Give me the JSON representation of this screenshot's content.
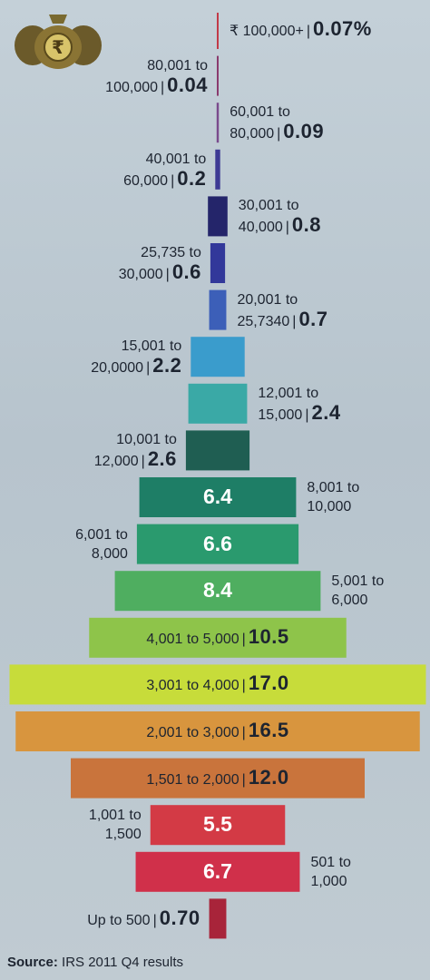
{
  "chart_data": {
    "type": "bar",
    "unit_suffix": "%",
    "categories": [
      "₹ 100,000+",
      "80,001 to 100,000",
      "60,001 to 80,000",
      "40,001 to 60,000",
      "30,001 to 40,000",
      "25,735 to 30,000",
      "20,001 to 25,7340",
      "15,001 to 20,0000",
      "12,001 to 15,000",
      "10,001 to 12,000",
      "8,001 to 10,000",
      "6,001 to 8,000",
      "5,001 to 6,000",
      "4,001 to 5,000",
      "3,001 to 4,000",
      "2,001 to 3,000",
      "1,501 to 2,000",
      "1,001 to 1,500",
      "501 to 1,000",
      "Up to 500"
    ],
    "values": [
      0.07,
      0.04,
      0.09,
      0.2,
      0.8,
      0.6,
      0.7,
      2.2,
      2.4,
      2.6,
      6.4,
      6.6,
      8.4,
      10.5,
      17.0,
      16.5,
      12.0,
      5.5,
      6.7,
      0.7
    ],
    "value_labels": [
      "0.07%",
      "0.04",
      "0.09",
      "0.2",
      "0.8",
      "0.6",
      "0.7",
      "2.2",
      "2.4",
      "2.6",
      "6.4",
      "6.6",
      "8.4",
      "10.5",
      "17.0",
      "16.5",
      "12.0",
      "5.5",
      "6.7",
      "0.70"
    ],
    "label_lines": [
      [
        "₹ 100,000+"
      ],
      [
        "80,001 to",
        "100,000"
      ],
      [
        "60,001 to",
        "80,000"
      ],
      [
        "40,001 to",
        "60,000"
      ],
      [
        "30,001 to",
        "40,000"
      ],
      [
        "25,735 to",
        "30,000"
      ],
      [
        "20,001 to",
        "25,7340"
      ],
      [
        "15,001 to",
        "20,0000"
      ],
      [
        "12,001 to",
        "15,000"
      ],
      [
        "10,001 to",
        "12,000"
      ],
      [
        "8,001 to",
        "10,000"
      ],
      [
        "6,001 to",
        "8,000"
      ],
      [
        "5,001 to",
        "6,000"
      ],
      [
        "4,001 to 5,000"
      ],
      [
        "3,001 to 4,000"
      ],
      [
        "2,001 to 3,000"
      ],
      [
        "1,501 to 2,000"
      ],
      [
        "1,001 to",
        "1,500"
      ],
      [
        "501 to",
        "1,000"
      ],
      [
        "Up to 500"
      ]
    ],
    "colors": [
      "#c23a48",
      "#8a3b6e",
      "#7a4a8c",
      "#3d3a94",
      "#24256a",
      "#32389a",
      "#3c5fb8",
      "#3a9ccc",
      "#3aa9a6",
      "#1f5e52",
      "#1e7e66",
      "#2a9a6e",
      "#4fae60",
      "#8ec44a",
      "#c7dc3a",
      "#d8953e",
      "#c9743c",
      "#d33a45",
      "#d0304a",
      "#a8243a"
    ]
  },
  "source": {
    "label": "Source:",
    "text": "IRS 2011 Q4 results"
  },
  "logo": {
    "icon": "rupee-money-bag-icon",
    "symbol": "₹"
  }
}
